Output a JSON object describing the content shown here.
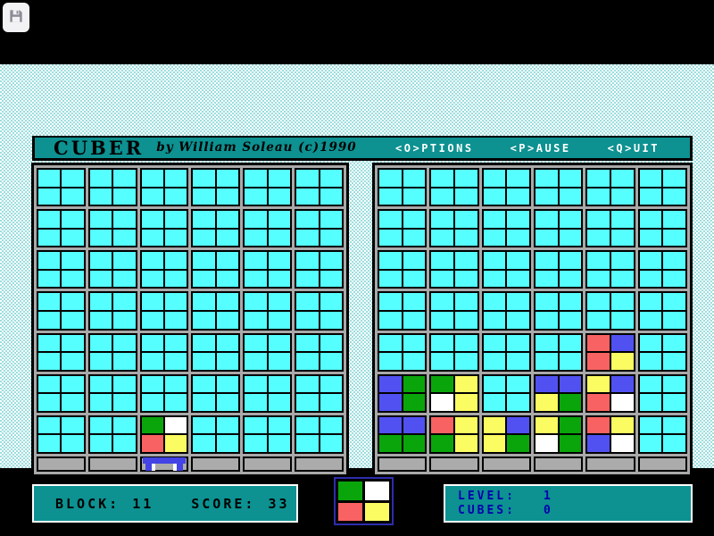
{
  "overlay": {
    "chevron": "›"
  },
  "title_bar": {
    "title": "CUBER",
    "byline": "by William Soleau  (c)1990",
    "menu": [
      {
        "label": "<O>PTIONS"
      },
      {
        "label": "<P>AUSE"
      },
      {
        "label": "<Q>UIT"
      }
    ]
  },
  "palette": {
    "cyan": "#55ffff",
    "green": "#0aa50a",
    "red": "#f96262",
    "yellow": "#fbfb62",
    "blue": "#5151f2",
    "white": "#ffffff",
    "teal": "#0d9191",
    "frame_gray": "#a9a9a9",
    "status_text_blue": "#0000ae",
    "cart_blue": "#4343e6"
  },
  "boards": {
    "cols": 6,
    "rows": 7,
    "left": {
      "blocks": [
        {
          "row": 7,
          "col": 3,
          "cells": [
            "green",
            "white",
            "red",
            "yellow"
          ]
        }
      ],
      "cart_col": 3
    },
    "right": {
      "blocks": [
        {
          "row": 5,
          "col": 5,
          "cells": [
            "red",
            "blue",
            "red",
            "yellow"
          ]
        },
        {
          "row": 6,
          "col": 1,
          "cells": [
            "blue",
            "green",
            "blue",
            "green"
          ]
        },
        {
          "row": 6,
          "col": 2,
          "cells": [
            "green",
            "yellow",
            "white",
            "yellow"
          ]
        },
        {
          "row": 6,
          "col": 4,
          "cells": [
            "blue",
            "blue",
            "yellow",
            "green"
          ]
        },
        {
          "row": 6,
          "col": 5,
          "cells": [
            "yellow",
            "blue",
            "red",
            "white"
          ]
        },
        {
          "row": 7,
          "col": 1,
          "cells": [
            "blue",
            "blue",
            "green",
            "green"
          ]
        },
        {
          "row": 7,
          "col": 2,
          "cells": [
            "red",
            "yellow",
            "green",
            "yellow"
          ]
        },
        {
          "row": 7,
          "col": 3,
          "cells": [
            "yellow",
            "blue",
            "yellow",
            "green"
          ]
        },
        {
          "row": 7,
          "col": 4,
          "cells": [
            "yellow",
            "green",
            "white",
            "green"
          ]
        },
        {
          "row": 7,
          "col": 5,
          "cells": [
            "red",
            "yellow",
            "blue",
            "white"
          ]
        }
      ],
      "cart_col": null
    }
  },
  "preview": {
    "cells": [
      "green",
      "white",
      "red",
      "yellow"
    ]
  },
  "status": {
    "block_label": "BLOCK:",
    "block_value": "11",
    "score_label": "SCORE:",
    "score_value": "33",
    "level_label": "LEVEL:",
    "level_value": "1",
    "cubes_label": "CUBES:",
    "cubes_value": "0"
  }
}
